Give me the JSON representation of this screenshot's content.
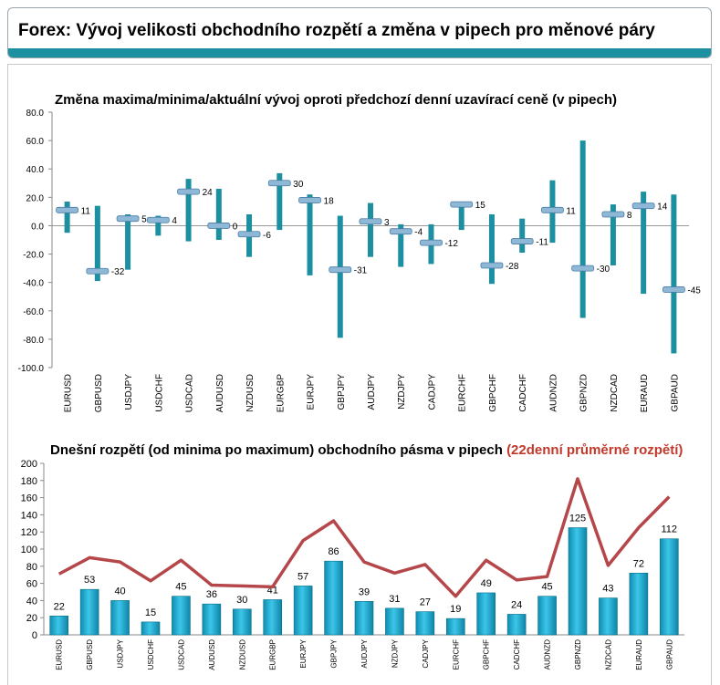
{
  "header": {
    "title": "Forex: Vývoj velikosti obchodního rozpětí a změna v pipech pro měnové páry"
  },
  "colors": {
    "accent": "#1c8fa0",
    "bar": "#1aa6c9",
    "line": "#b5474b",
    "marker": "#8fb7d6"
  },
  "chart_data": [
    {
      "type": "bar",
      "subtype": "range-bar-with-marker",
      "title": "Změna maxima/minima/aktuální vývoj oproti předchozí denní uzavírací ceně (v pipech)",
      "categories": [
        "EURUSD",
        "GBPUSD",
        "USDJPY",
        "USDCHF",
        "USDCAD",
        "AUDUSD",
        "NZDUSD",
        "EURGBP",
        "EURJPY",
        "GBPJPY",
        "AUDJPY",
        "NZDJPY",
        "CADJPY",
        "EURCHF",
        "GBPCHF",
        "CADCHF",
        "AUDNZD",
        "GBPNZD",
        "NZDCAD",
        "EURAUD",
        "GBPAUD"
      ],
      "series": [
        {
          "values_high": [
            17,
            14,
            8,
            7,
            33,
            26,
            8,
            37,
            22,
            7,
            16,
            1,
            1,
            17,
            8,
            5,
            32,
            60,
            15,
            24,
            22
          ]
        },
        {
          "values_low": [
            -5,
            -39,
            -31,
            -7,
            -11,
            -10,
            -22,
            -3,
            -35,
            -79,
            -22,
            -29,
            -27,
            -3,
            -41,
            -19,
            -12,
            -65,
            -28,
            -48,
            -90
          ]
        },
        {
          "values_current": [
            11,
            -32,
            5,
            4,
            24,
            0,
            -6,
            30,
            18,
            -31,
            3,
            -4,
            -12,
            15,
            -28,
            -11,
            11,
            -30,
            8,
            14,
            -45
          ]
        }
      ],
      "data_labels": [
        "11",
        "-32",
        "5",
        "4",
        "24",
        "0",
        "-6",
        "30",
        "18",
        "-31",
        "3",
        "-4",
        "-12",
        "15",
        "-28",
        "-11",
        "11",
        "-30",
        "8",
        "14",
        "-45"
      ],
      "ylim": [
        -100,
        80
      ],
      "y_ticks": [
        "80.0",
        "60.0",
        "40.0",
        "20.0",
        "0.0",
        "-20.0",
        "-40.0",
        "-60.0",
        "-80.0",
        "-100.0"
      ],
      "grid": false
    },
    {
      "type": "bar",
      "title": "Dnešní rozpětí (od minima po maximum) obchodního pásma v pipech",
      "title_highlight": "(22denní průměrné rozpětí)",
      "categories": [
        "EURUSD",
        "GBPUSD",
        "USDJPY",
        "USDCHF",
        "USDCAD",
        "AUDUSD",
        "NZDUSD",
        "EURGBP",
        "EURJPY",
        "GBPJPY",
        "AUDJPY",
        "NZDJPY",
        "CADJPY",
        "EURCHF",
        "GBPCHF",
        "CADCHF",
        "AUDNZD",
        "GBPNZD",
        "NZDCAD",
        "EURAUD",
        "GBPAUD"
      ],
      "series": [
        {
          "values": [
            22,
            53,
            40,
            15,
            45,
            36,
            30,
            41,
            57,
            86,
            39,
            31,
            27,
            19,
            49,
            24,
            45,
            125,
            43,
            72,
            112
          ]
        },
        {
          "type": "line",
          "values": [
            71,
            90,
            85,
            63,
            87,
            58,
            57,
            56,
            110,
            133,
            85,
            72,
            82,
            45,
            87,
            64,
            68,
            182,
            81,
            125,
            161
          ]
        }
      ],
      "data_labels": [
        "22",
        "53",
        "40",
        "15",
        "45",
        "36",
        "30",
        "41",
        "57",
        "86",
        "39",
        "31",
        "27",
        "19",
        "49",
        "24",
        "45",
        "125",
        "43",
        "72",
        "112"
      ],
      "ylim": [
        0,
        200
      ],
      "y_ticks": [
        "200",
        "180",
        "160",
        "140",
        "120",
        "100",
        "80",
        "60",
        "40",
        "20",
        "0"
      ],
      "grid": false
    }
  ]
}
